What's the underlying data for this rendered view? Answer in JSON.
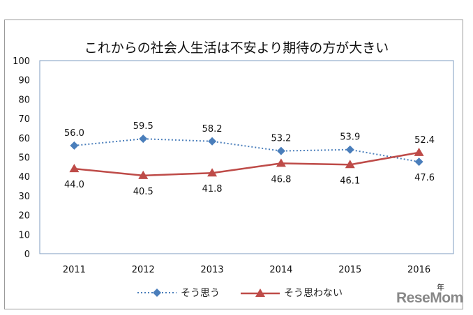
{
  "chart_data": {
    "type": "line",
    "title": "これからの社会人生活は不安より期待の方が大きい",
    "categories": [
      "2011",
      "2012",
      "2013",
      "2014",
      "2015",
      "2016"
    ],
    "xlabel": "年",
    "ylabel": "",
    "ylim": [
      0,
      100
    ],
    "yticks": [
      0,
      10,
      20,
      30,
      40,
      50,
      60,
      70,
      80,
      90,
      100
    ],
    "grid": false,
    "legend": "bottom",
    "series": [
      {
        "name": "そう思う",
        "values": [
          56.0,
          59.5,
          58.2,
          53.2,
          53.9,
          47.6
        ],
        "labels": [
          "56.0",
          "59.5",
          "58.2",
          "53.2",
          "53.9",
          "47.6"
        ],
        "color": "#4a7ebb",
        "style": "dotted",
        "marker": "diamond"
      },
      {
        "name": "そう思わない",
        "values": [
          44.0,
          40.5,
          41.8,
          46.8,
          46.1,
          52.4
        ],
        "labels": [
          "44.0",
          "40.5",
          "41.8",
          "46.8",
          "46.1",
          "52.4"
        ],
        "color": "#be4b48",
        "style": "solid",
        "marker": "triangle"
      }
    ]
  },
  "watermark": "ReseMom"
}
